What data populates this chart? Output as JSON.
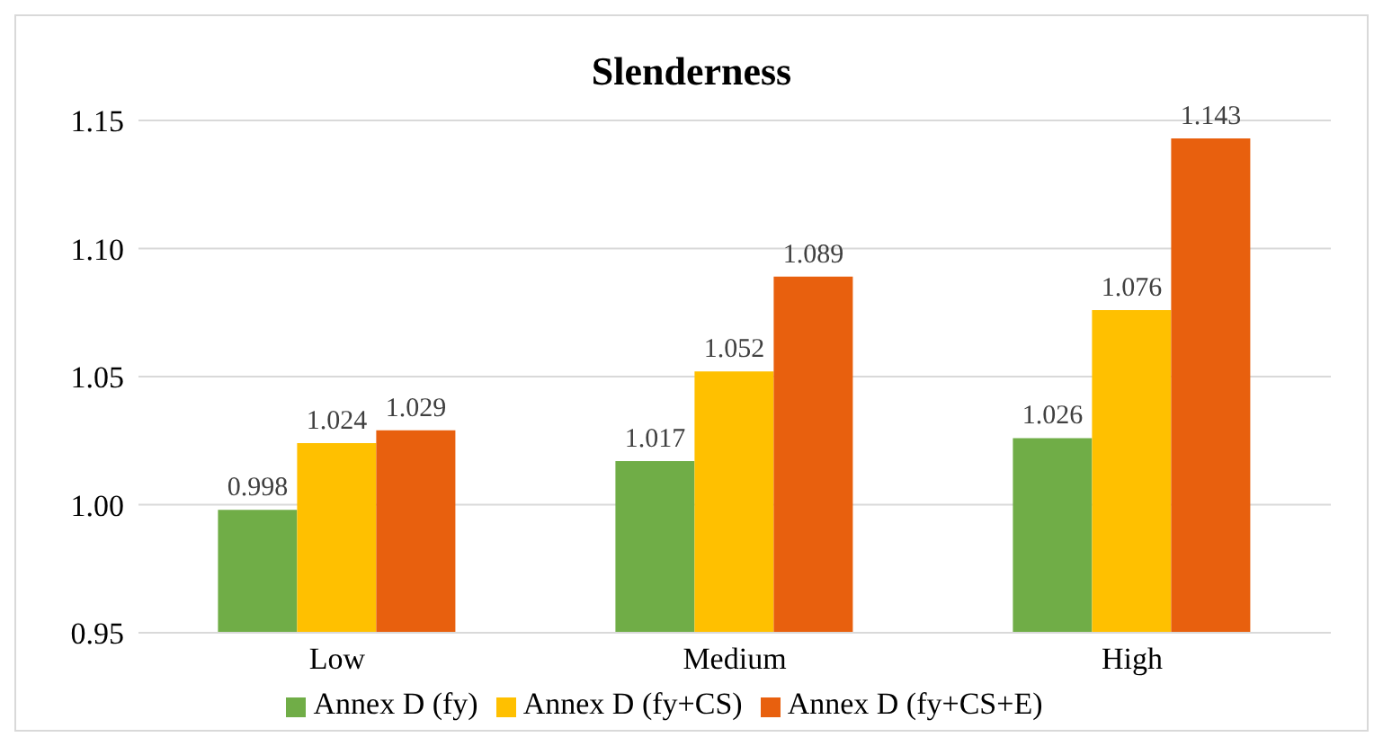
{
  "chart_data": {
    "type": "bar",
    "title": "Slenderness",
    "categories": [
      "Low",
      "Medium",
      "High"
    ],
    "series": [
      {
        "name": "Annex D (fy)",
        "color": "#70ad47",
        "values": [
          0.998,
          1.017,
          1.026
        ]
      },
      {
        "name": "Annex D (fy+CS)",
        "color": "#ffc000",
        "values": [
          1.024,
          1.052,
          1.076
        ]
      },
      {
        "name": "Annex D (fy+CS+E)",
        "color": "#e8600e",
        "values": [
          1.029,
          1.089,
          1.143
        ]
      }
    ],
    "ylim": [
      0.95,
      1.15
    ],
    "yticks": [
      {
        "value": 0.95,
        "label": "0.95"
      },
      {
        "value": 1,
        "label": "1.00"
      },
      {
        "value": 1.05,
        "label": "1.05"
      },
      {
        "value": 1.1,
        "label": "1.10"
      },
      {
        "value": 1.15,
        "label": "1.15"
      }
    ],
    "grid": "y",
    "legend": "bottom",
    "data_labels": true
  }
}
